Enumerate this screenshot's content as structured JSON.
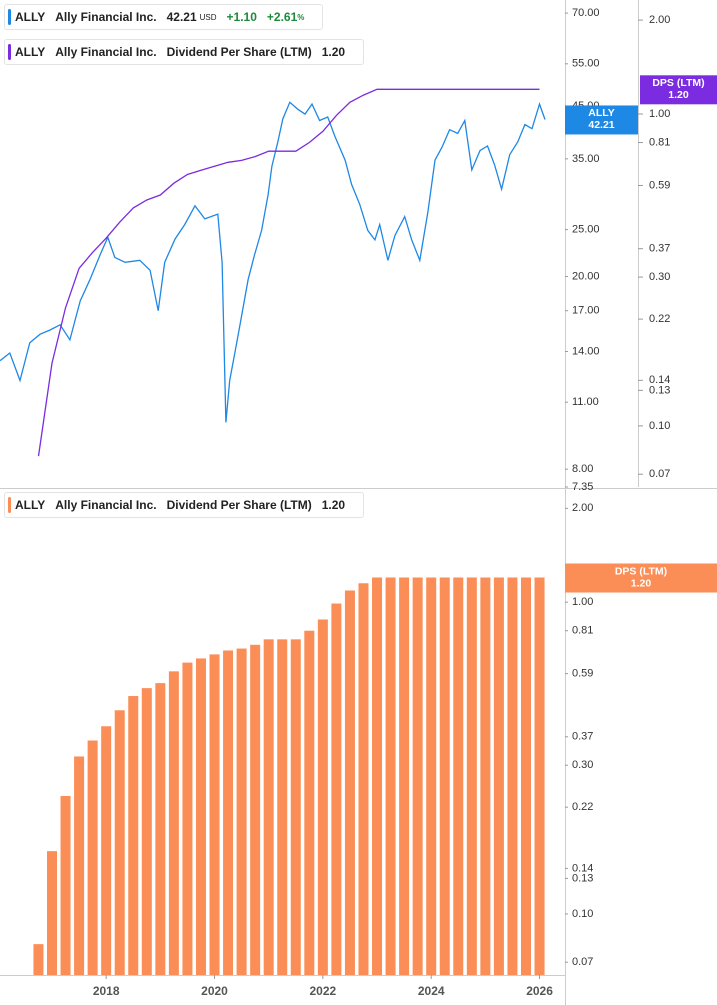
{
  "chart_data": [
    {
      "type": "line",
      "ticker": "ALLY",
      "company": "Ally Financial Inc.",
      "legend": [
        {
          "price": "42.21",
          "currency": "USD",
          "change": "+1.10",
          "change_pct": "+2.61",
          "pct_sign": "%"
        },
        {
          "metric": "Dividend Per Share (LTM)",
          "last": "1.20"
        }
      ],
      "dps_tag": "DPS (LTM)",
      "log_scale": true,
      "grid": false,
      "xlim": [
        2016.04,
        2026.47
      ],
      "ylim": [
        7.35,
        74.5
      ],
      "y2lim": [
        0.0637,
        2.32
      ],
      "yticks": [
        {
          "value": 70,
          "label": "70.00"
        },
        {
          "value": 55,
          "label": "55.00"
        },
        {
          "value": 45,
          "label": "45.00"
        },
        {
          "value": 35,
          "label": "35.00"
        },
        {
          "value": 25,
          "label": "25.00"
        },
        {
          "value": 20,
          "label": "20.00"
        },
        {
          "value": 17,
          "label": "17.00"
        },
        {
          "value": 14,
          "label": "14.00"
        },
        {
          "value": 11,
          "label": "11.00"
        },
        {
          "value": 8,
          "label": "8.00"
        },
        7.35
      ],
      "y2ticks": [
        {
          "value": 2,
          "label": "2.00"
        },
        {
          "value": 1,
          "label": "1.00"
        },
        0.81,
        0.59,
        0.37,
        {
          "value": 0.3,
          "label": "0.30"
        },
        0.22,
        0.14,
        0.13,
        {
          "value": 0.1,
          "label": "0.10"
        },
        0.07
      ],
      "series": [
        {
          "name": "Ally Financial Inc.",
          "color": "#1e88e5",
          "axis": "y",
          "x": [
            2016.04,
            2016.22,
            2016.41,
            2016.59,
            2016.78,
            2016.96,
            2017.15,
            2017.33,
            2017.52,
            2017.7,
            2017.89,
            2018.03,
            2018.16,
            2018.35,
            2018.62,
            2018.81,
            2018.96,
            2019.08,
            2019.27,
            2019.45,
            2019.64,
            2019.82,
            2020.06,
            2020.14,
            2020.21,
            2020.28,
            2020.38,
            2020.47,
            2020.62,
            2020.74,
            2020.87,
            2020.99,
            2021.06,
            2021.17,
            2021.26,
            2021.39,
            2021.54,
            2021.67,
            2021.8,
            2021.94,
            2022.09,
            2022.22,
            2022.41,
            2022.53,
            2022.68,
            2022.83,
            2022.96,
            2023.05,
            2023.2,
            2023.33,
            2023.51,
            2023.64,
            2023.79,
            2023.94,
            2024.07,
            2024.2,
            2024.34,
            2024.49,
            2024.62,
            2024.75,
            2024.9,
            2025.04,
            2025.17,
            2025.3,
            2025.45,
            2025.6,
            2025.73,
            2025.86,
            2026.0,
            2026.1
          ],
          "values": [
            13.4,
            13.9,
            12.2,
            14.6,
            15.2,
            15.5,
            15.9,
            14.8,
            17.8,
            19.7,
            22.2,
            24.1,
            21.9,
            21.4,
            21.6,
            20.6,
            17.0,
            21.4,
            23.9,
            25.6,
            28.0,
            26.3,
            26.9,
            21.4,
            10.0,
            12.2,
            14.0,
            15.9,
            19.7,
            22.2,
            24.9,
            29.5,
            33.8,
            38.0,
            42.3,
            45.8,
            44.3,
            43.3,
            45.4,
            42.0,
            42.7,
            39.0,
            34.8,
            31.0,
            28.2,
            24.9,
            23.8,
            25.6,
            21.6,
            24.3,
            26.6,
            23.8,
            21.6,
            27.2,
            34.8,
            37.0,
            40.2,
            39.5,
            42.0,
            33.2,
            36.4,
            37.2,
            34.0,
            30.3,
            35.7,
            38.0,
            41.2,
            40.4,
            45.4,
            42.21
          ]
        },
        {
          "name": "Dividend Per Share (LTM)",
          "color": "#7b2be0",
          "axis": "y2",
          "x": [
            2016.75,
            2017.0,
            2017.25,
            2017.5,
            2017.75,
            2018.0,
            2018.25,
            2018.5,
            2018.75,
            2019.0,
            2019.25,
            2019.5,
            2019.75,
            2020.0,
            2020.25,
            2020.5,
            2020.75,
            2021.0,
            2021.25,
            2021.5,
            2021.75,
            2022.0,
            2022.25,
            2022.5,
            2022.75,
            2023.0,
            2023.25,
            2023.5,
            2023.75,
            2024.0,
            2024.25,
            2024.5,
            2024.75,
            2025.0,
            2025.25,
            2025.5,
            2025.75,
            2026.0
          ],
          "values": [
            0.08,
            0.159,
            0.239,
            0.32,
            0.36,
            0.4,
            0.45,
            0.5,
            0.53,
            0.55,
            0.6,
            0.64,
            0.66,
            0.68,
            0.7,
            0.71,
            0.73,
            0.76,
            0.76,
            0.76,
            0.81,
            0.88,
            0.99,
            1.09,
            1.15,
            1.2,
            1.2,
            1.2,
            1.2,
            1.2,
            1.2,
            1.2,
            1.2,
            1.2,
            1.2,
            1.2,
            1.2,
            1.2
          ]
        }
      ]
    },
    {
      "type": "bar",
      "ticker": "ALLY",
      "company": "Ally Financial Inc.",
      "legend": [
        {
          "metric": "Dividend Per Share (LTM)",
          "last": "1.20"
        }
      ],
      "dps_tag": "DPS (LTM)",
      "log_scale": true,
      "grid": false,
      "xlim": [
        2016.04,
        2026.47
      ],
      "xticks": [
        2018,
        2020,
        2022,
        2024,
        2026
      ],
      "ylim": [
        0.0637,
        2.29
      ],
      "yticks": [
        {
          "value": 2,
          "label": "2.00"
        },
        {
          "value": 1,
          "label": "1.00"
        },
        0.81,
        0.59,
        0.37,
        {
          "value": 0.3,
          "label": "0.30"
        },
        0.22,
        0.14,
        0.13,
        {
          "value": 0.1,
          "label": "0.10"
        },
        0.07
      ],
      "series": [
        {
          "name": "Dividend Per Share (LTM)",
          "color": "#fb8d57",
          "x": [
            2016.75,
            2017.0,
            2017.25,
            2017.5,
            2017.75,
            2018.0,
            2018.25,
            2018.5,
            2018.75,
            2019.0,
            2019.25,
            2019.5,
            2019.75,
            2020.0,
            2020.25,
            2020.5,
            2020.75,
            2021.0,
            2021.25,
            2021.5,
            2021.75,
            2022.0,
            2022.25,
            2022.5,
            2022.75,
            2023.0,
            2023.25,
            2023.5,
            2023.75,
            2024.0,
            2024.25,
            2024.5,
            2024.75,
            2025.0,
            2025.25,
            2025.5,
            2025.75,
            2026.0
          ],
          "values": [
            0.08,
            0.159,
            0.239,
            0.32,
            0.36,
            0.4,
            0.45,
            0.5,
            0.53,
            0.55,
            0.6,
            0.64,
            0.66,
            0.68,
            0.7,
            0.71,
            0.73,
            0.76,
            0.76,
            0.76,
            0.81,
            0.88,
            0.99,
            1.09,
            1.15,
            1.2,
            1.2,
            1.2,
            1.2,
            1.2,
            1.2,
            1.2,
            1.2,
            1.2,
            1.2,
            1.2,
            1.2,
            1.2
          ]
        }
      ]
    }
  ]
}
